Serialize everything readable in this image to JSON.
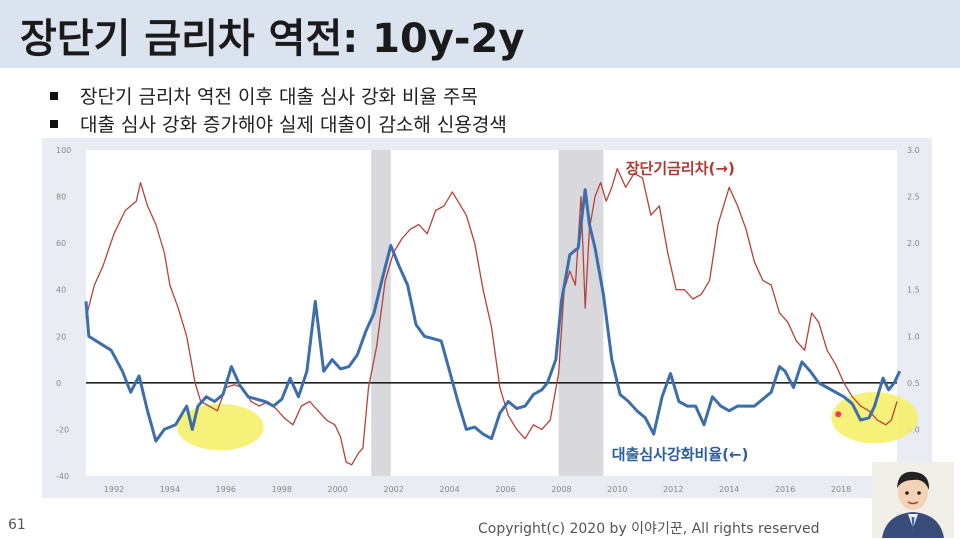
{
  "slide": {
    "title": "장단기 금리차 역전: 10y-2y",
    "bullets": [
      "장단기 금리차 역전 이후 대출 심사 강화 비율 주목",
      "대출 심사 강화 증가해야 실제 대출이 감소해 신용경색"
    ],
    "page_number": "61",
    "copyright": "Copyright(c) 2020 by 이야기꾼, All rights reserved"
  },
  "colors": {
    "spread_line": "#b5423c",
    "lending_line": "#3d6eaa",
    "spread_label": "#b03a33",
    "lending_label": "#2e5f9a",
    "recession_band": "#d9d9dd",
    "highlight": "#f5f06a",
    "title_bar": "#dbe3ef"
  },
  "chart_data": {
    "type": "line",
    "x_range": [
      1991,
      2020
    ],
    "x_ticks": [
      "1992",
      "1994",
      "1996",
      "1998",
      "2000",
      "2002",
      "2004",
      "2006",
      "2008",
      "2010",
      "2012",
      "2014",
      "2016",
      "2018"
    ],
    "left_axis": {
      "ticks": [
        "100",
        "80",
        "60",
        "40",
        "20",
        "0",
        "-20",
        "-40"
      ],
      "range": [
        -40,
        100
      ]
    },
    "right_axis": {
      "ticks": [
        "3.0",
        "2.5",
        "2.0",
        "1.5",
        "1.0",
        "0.5",
        "0.0",
        "-0.5"
      ],
      "range": [
        -0.5,
        3.0
      ]
    },
    "recession_bands": [
      [
        2001.2,
        2001.9
      ],
      [
        2007.9,
        2009.5
      ]
    ],
    "zero_line": 0,
    "series": [
      {
        "name": "장단기금리차(→)",
        "axis": "right",
        "points": [
          [
            1991.0,
            1.2
          ],
          [
            1991.3,
            1.55
          ],
          [
            1991.6,
            1.75
          ],
          [
            1992.0,
            2.1
          ],
          [
            1992.4,
            2.35
          ],
          [
            1992.8,
            2.45
          ],
          [
            1992.95,
            2.65
          ],
          [
            1993.2,
            2.4
          ],
          [
            1993.5,
            2.2
          ],
          [
            1993.8,
            1.9
          ],
          [
            1994.0,
            1.55
          ],
          [
            1994.3,
            1.3
          ],
          [
            1994.6,
            1.0
          ],
          [
            1994.9,
            0.5
          ],
          [
            1995.1,
            0.3
          ],
          [
            1995.4,
            0.25
          ],
          [
            1995.7,
            0.2
          ],
          [
            1996.0,
            0.45
          ],
          [
            1996.3,
            0.48
          ],
          [
            1996.6,
            0.45
          ],
          [
            1996.9,
            0.3
          ],
          [
            1997.2,
            0.25
          ],
          [
            1997.5,
            0.3
          ],
          [
            1997.8,
            0.22
          ],
          [
            1998.1,
            0.12
          ],
          [
            1998.4,
            0.05
          ],
          [
            1998.7,
            0.25
          ],
          [
            1999.0,
            0.3
          ],
          [
            1999.3,
            0.2
          ],
          [
            1999.6,
            0.1
          ],
          [
            1999.9,
            0.05
          ],
          [
            2000.1,
            -0.08
          ],
          [
            2000.3,
            -0.35
          ],
          [
            2000.5,
            -0.38
          ],
          [
            2000.75,
            -0.25
          ],
          [
            2000.9,
            -0.2
          ],
          [
            2001.1,
            0.45
          ],
          [
            2001.4,
            0.9
          ],
          [
            2001.7,
            1.6
          ],
          [
            2002.0,
            1.9
          ],
          [
            2002.3,
            2.05
          ],
          [
            2002.6,
            2.15
          ],
          [
            2002.9,
            2.2
          ],
          [
            2003.2,
            2.1
          ],
          [
            2003.5,
            2.35
          ],
          [
            2003.8,
            2.4
          ],
          [
            2004.0,
            2.5
          ],
          [
            2004.1,
            2.55
          ],
          [
            2004.3,
            2.45
          ],
          [
            2004.6,
            2.3
          ],
          [
            2004.9,
            2.0
          ],
          [
            2005.2,
            1.5
          ],
          [
            2005.5,
            1.1
          ],
          [
            2005.8,
            0.45
          ],
          [
            2006.1,
            0.15
          ],
          [
            2006.4,
            0.0
          ],
          [
            2006.7,
            -0.1
          ],
          [
            2007.0,
            0.05
          ],
          [
            2007.3,
            0.0
          ],
          [
            2007.6,
            0.1
          ],
          [
            2007.9,
            0.6
          ],
          [
            2008.1,
            1.5
          ],
          [
            2008.3,
            1.7
          ],
          [
            2008.5,
            1.55
          ],
          [
            2008.7,
            2.5
          ],
          [
            2008.85,
            1.3
          ],
          [
            2009.0,
            2.15
          ],
          [
            2009.2,
            2.5
          ],
          [
            2009.4,
            2.65
          ],
          [
            2009.6,
            2.45
          ],
          [
            2009.8,
            2.6
          ],
          [
            2010.0,
            2.8
          ],
          [
            2010.3,
            2.6
          ],
          [
            2010.6,
            2.75
          ],
          [
            2010.9,
            2.7
          ],
          [
            2011.2,
            2.3
          ],
          [
            2011.5,
            2.4
          ],
          [
            2011.8,
            1.9
          ],
          [
            2012.1,
            1.5
          ],
          [
            2012.4,
            1.5
          ],
          [
            2012.7,
            1.4
          ],
          [
            2013.0,
            1.45
          ],
          [
            2013.3,
            1.6
          ],
          [
            2013.6,
            2.2
          ],
          [
            2013.9,
            2.5
          ],
          [
            2014.0,
            2.6
          ],
          [
            2014.3,
            2.4
          ],
          [
            2014.6,
            2.15
          ],
          [
            2014.9,
            1.8
          ],
          [
            2015.2,
            1.6
          ],
          [
            2015.5,
            1.55
          ],
          [
            2015.8,
            1.25
          ],
          [
            2016.1,
            1.15
          ],
          [
            2016.4,
            0.95
          ],
          [
            2016.7,
            0.85
          ],
          [
            2016.95,
            1.25
          ],
          [
            2017.2,
            1.15
          ],
          [
            2017.5,
            0.85
          ],
          [
            2017.8,
            0.7
          ],
          [
            2018.1,
            0.5
          ],
          [
            2018.4,
            0.35
          ],
          [
            2018.7,
            0.25
          ],
          [
            2019.0,
            0.2
          ],
          [
            2019.3,
            0.1
          ],
          [
            2019.6,
            0.05
          ],
          [
            2019.8,
            0.1
          ],
          [
            2020.0,
            0.3
          ]
        ]
      },
      {
        "name": "대출심사강화비율(←)",
        "axis": "left",
        "points": [
          [
            1991.0,
            35
          ],
          [
            1991.1,
            20
          ],
          [
            1991.5,
            17
          ],
          [
            1991.9,
            14
          ],
          [
            1992.3,
            5
          ],
          [
            1992.6,
            -4
          ],
          [
            1992.9,
            3
          ],
          [
            1993.2,
            -12
          ],
          [
            1993.5,
            -25
          ],
          [
            1993.8,
            -20
          ],
          [
            1994.2,
            -18
          ],
          [
            1994.6,
            -10
          ],
          [
            1994.8,
            -20
          ],
          [
            1995.0,
            -10
          ],
          [
            1995.3,
            -6
          ],
          [
            1995.6,
            -8
          ],
          [
            1995.9,
            -5
          ],
          [
            1996.2,
            7
          ],
          [
            1996.5,
            -1
          ],
          [
            1996.8,
            -6
          ],
          [
            1997.1,
            -7
          ],
          [
            1997.4,
            -8
          ],
          [
            1997.7,
            -10
          ],
          [
            1998.0,
            -7
          ],
          [
            1998.3,
            2
          ],
          [
            1998.6,
            -6
          ],
          [
            1998.9,
            5
          ],
          [
            1999.2,
            35
          ],
          [
            1999.5,
            5
          ],
          [
            1999.8,
            10
          ],
          [
            2000.1,
            6
          ],
          [
            2000.4,
            7
          ],
          [
            2000.7,
            12
          ],
          [
            2001.0,
            22
          ],
          [
            2001.3,
            30
          ],
          [
            2001.6,
            45
          ],
          [
            2001.9,
            59
          ],
          [
            2002.2,
            50
          ],
          [
            2002.5,
            42
          ],
          [
            2002.8,
            25
          ],
          [
            2003.1,
            20
          ],
          [
            2003.4,
            19
          ],
          [
            2003.7,
            18
          ],
          [
            2004.0,
            5
          ],
          [
            2004.3,
            -8
          ],
          [
            2004.6,
            -20
          ],
          [
            2004.9,
            -19
          ],
          [
            2005.2,
            -22
          ],
          [
            2005.5,
            -24
          ],
          [
            2005.8,
            -13
          ],
          [
            2006.1,
            -8
          ],
          [
            2006.4,
            -11
          ],
          [
            2006.7,
            -10
          ],
          [
            2007.0,
            -5
          ],
          [
            2007.3,
            -3
          ],
          [
            2007.5,
            0
          ],
          [
            2007.8,
            10
          ],
          [
            2008.0,
            35
          ],
          [
            2008.3,
            55
          ],
          [
            2008.6,
            58
          ],
          [
            2008.85,
            83
          ],
          [
            2009.0,
            68
          ],
          [
            2009.2,
            58
          ],
          [
            2009.5,
            38
          ],
          [
            2009.8,
            10
          ],
          [
            2010.1,
            -5
          ],
          [
            2010.4,
            -8
          ],
          [
            2010.7,
            -12
          ],
          [
            2011.0,
            -15
          ],
          [
            2011.3,
            -22
          ],
          [
            2011.6,
            -6
          ],
          [
            2011.9,
            4
          ],
          [
            2012.2,
            -8
          ],
          [
            2012.5,
            -10
          ],
          [
            2012.8,
            -10
          ],
          [
            2013.1,
            -18
          ],
          [
            2013.4,
            -6
          ],
          [
            2013.7,
            -10
          ],
          [
            2014.0,
            -12
          ],
          [
            2014.3,
            -10
          ],
          [
            2014.6,
            -10
          ],
          [
            2014.9,
            -10
          ],
          [
            2015.2,
            -7
          ],
          [
            2015.5,
            -4
          ],
          [
            2015.8,
            7
          ],
          [
            2016.0,
            5
          ],
          [
            2016.3,
            -2
          ],
          [
            2016.6,
            9
          ],
          [
            2016.9,
            5
          ],
          [
            2017.2,
            0
          ],
          [
            2017.5,
            -2
          ],
          [
            2017.8,
            -4
          ],
          [
            2018.1,
            -6
          ],
          [
            2018.4,
            -9
          ],
          [
            2018.7,
            -16
          ],
          [
            2019.0,
            -15
          ],
          [
            2019.2,
            -10
          ],
          [
            2019.5,
            2
          ],
          [
            2019.7,
            -3
          ],
          [
            2019.9,
            0
          ],
          [
            2020.1,
            5
          ]
        ]
      }
    ],
    "annotations": [
      {
        "text": "장단기금리차(→)",
        "series": 0
      },
      {
        "text": "대출심사강화비율(←)",
        "series": 1
      }
    ],
    "highlight_ellipses": [
      {
        "center": [
          1995.8,
          -19
        ],
        "rx_years": 1.55,
        "ry_units": 10
      },
      {
        "center": [
          2019.2,
          -15
        ],
        "rx_years": 1.55,
        "ry_units": 11
      }
    ],
    "marker": {
      "x": 2017.9,
      "y": -13.5
    }
  }
}
